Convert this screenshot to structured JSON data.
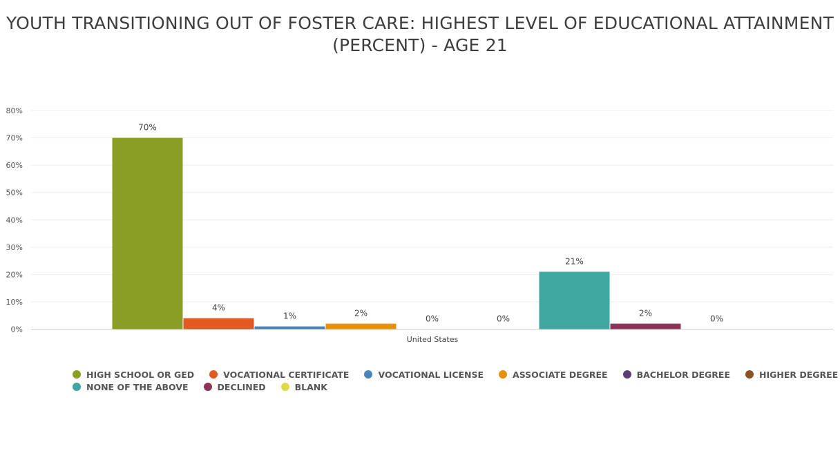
{
  "chart_data": {
    "type": "bar",
    "title_lines": [
      "YOUTH TRANSITIONING OUT OF FOSTER CARE: HIGHEST LEVEL OF EDUCATIONAL ATTAINMENT",
      "(PERCENT) - AGE 21"
    ],
    "categories": [
      "United States"
    ],
    "ylim": [
      0,
      80
    ],
    "yticks": [
      "0%",
      "10%",
      "20%",
      "30%",
      "40%",
      "50%",
      "60%",
      "70%",
      "80%"
    ],
    "grid": true,
    "legend_position": "bottom",
    "series": [
      {
        "name": "HIGH SCHOOL OR GED",
        "values": [
          70
        ],
        "label": "70%",
        "color": "#8a9e24"
      },
      {
        "name": "VOCATIONAL CERTIFICATE",
        "values": [
          4
        ],
        "label": "4%",
        "color": "#e05a22"
      },
      {
        "name": "VOCATIONAL LICENSE",
        "values": [
          1
        ],
        "label": "1%",
        "color": "#4a84b8"
      },
      {
        "name": "ASSOCIATE DEGREE",
        "values": [
          2
        ],
        "label": "2%",
        "color": "#e8900a"
      },
      {
        "name": "BACHELOR DEGREE",
        "values": [
          0
        ],
        "label": "0%",
        "color": "#5c3d7a"
      },
      {
        "name": "HIGHER DEGREE",
        "values": [
          0
        ],
        "label": "0%",
        "color": "#8a5422"
      },
      {
        "name": "NONE OF THE ABOVE",
        "values": [
          21
        ],
        "label": "21%",
        "color": "#3fa6a0"
      },
      {
        "name": "DECLINED",
        "values": [
          2
        ],
        "label": "2%",
        "color": "#8e3358"
      },
      {
        "name": "BLANK",
        "values": [
          0
        ],
        "label": "0%",
        "color": "#dcd94e"
      }
    ]
  }
}
